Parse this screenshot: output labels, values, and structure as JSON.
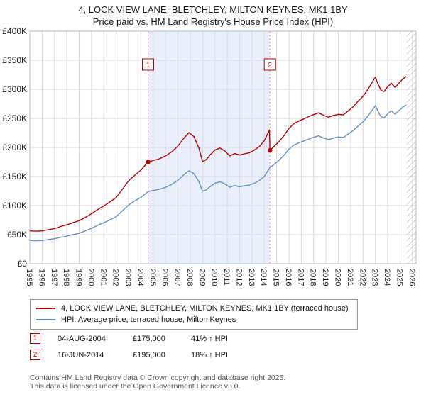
{
  "chart_data": {
    "type": "line",
    "title": "4, LOCK VIEW LANE, BLETCHLEY, MILTON KEYNES, MK1 1BY",
    "subtitle": "Price paid vs. HM Land Registry's House Price Index (HPI)",
    "x_domain": [
      1995,
      2026.3
    ],
    "y_domain": [
      0,
      400000
    ],
    "x_ticks": [
      1995,
      1996,
      1997,
      1998,
      1999,
      2000,
      2001,
      2002,
      2003,
      2004,
      2005,
      2006,
      2007,
      2008,
      2009,
      2010,
      2011,
      2012,
      2013,
      2014,
      2015,
      2016,
      2017,
      2018,
      2019,
      2020,
      2021,
      2022,
      2023,
      2024,
      2025,
      2026
    ],
    "y_ticks": [
      {
        "value": 0,
        "label": "£0"
      },
      {
        "value": 50000,
        "label": "£50K"
      },
      {
        "value": 100000,
        "label": "£100K"
      },
      {
        "value": 150000,
        "label": "£150K"
      },
      {
        "value": 200000,
        "label": "£200K"
      },
      {
        "value": 250000,
        "label": "£250K"
      },
      {
        "value": 300000,
        "label": "£300K"
      },
      {
        "value": 350000,
        "label": "£350K"
      },
      {
        "value": 400000,
        "label": "£400K"
      }
    ],
    "grid": true,
    "legend_position": "bottom",
    "shaded_region": [
      2004.58,
      2014.46
    ],
    "hatch_region": [
      2025.55,
      2026.3
    ],
    "colors": {
      "accent": "#b30000",
      "shade": "#e9effa",
      "grid": "#d9d9d9",
      "dotted": "#e4889a",
      "hatch": "#b5b5b5",
      "axis_text": "#222222",
      "plot_border": "#bbbbbb"
    },
    "sales": [
      {
        "n": "1",
        "x": 2004.58,
        "price": 175000
      },
      {
        "n": "2",
        "x": 2014.46,
        "price": 195000
      }
    ],
    "series": [
      {
        "name": "4, LOCK VIEW LANE, BLETCHLEY, MILTON KEYNES, MK1 1BY (terraced house)",
        "color": "#b30000",
        "data_name": "property-price-line",
        "points": [
          [
            1995,
            56500
          ],
          [
            1995.5,
            56000
          ],
          [
            1996,
            56500
          ],
          [
            1996.5,
            58500
          ],
          [
            1997,
            60500
          ],
          [
            1997.5,
            64000
          ],
          [
            1998,
            67000
          ],
          [
            1998.5,
            70500
          ],
          [
            1999,
            74000
          ],
          [
            1999.5,
            79500
          ],
          [
            2000,
            86000
          ],
          [
            2000.5,
            93000
          ],
          [
            2001,
            99500
          ],
          [
            2001.5,
            106500
          ],
          [
            2002,
            114000
          ],
          [
            2002.5,
            128000
          ],
          [
            2003,
            142500
          ],
          [
            2003.5,
            152000
          ],
          [
            2004,
            161000
          ],
          [
            2004.58,
            175000
          ],
          [
            2005,
            177500
          ],
          [
            2005.5,
            180500
          ],
          [
            2006,
            185500
          ],
          [
            2006.5,
            192500
          ],
          [
            2007,
            202500
          ],
          [
            2007.5,
            216500
          ],
          [
            2007.9,
            225500
          ],
          [
            2008.3,
            218500
          ],
          [
            2008.7,
            199000
          ],
          [
            2009,
            175500
          ],
          [
            2009.3,
            179000
          ],
          [
            2009.6,
            187000
          ],
          [
            2010,
            195500
          ],
          [
            2010.4,
            199000
          ],
          [
            2010.8,
            194000
          ],
          [
            2011.2,
            185500
          ],
          [
            2011.6,
            189500
          ],
          [
            2012,
            187000
          ],
          [
            2012.4,
            189000
          ],
          [
            2012.8,
            191000
          ],
          [
            2013.2,
            195500
          ],
          [
            2013.6,
            201500
          ],
          [
            2014,
            211500
          ],
          [
            2014.42,
            230000
          ],
          [
            2014.46,
            195000
          ],
          [
            2014.8,
            202000
          ],
          [
            2015.2,
            210000
          ],
          [
            2015.6,
            220500
          ],
          [
            2016,
            232500
          ],
          [
            2016.4,
            241000
          ],
          [
            2016.8,
            245500
          ],
          [
            2017.2,
            249000
          ],
          [
            2017.6,
            253000
          ],
          [
            2018,
            256500
          ],
          [
            2018.4,
            259500
          ],
          [
            2018.8,
            255500
          ],
          [
            2019.2,
            252000
          ],
          [
            2019.6,
            255000
          ],
          [
            2020,
            257000
          ],
          [
            2020.4,
            256000
          ],
          [
            2020.8,
            263000
          ],
          [
            2021.2,
            270000
          ],
          [
            2021.6,
            279500
          ],
          [
            2022,
            288000
          ],
          [
            2022.4,
            300000
          ],
          [
            2022.8,
            314000
          ],
          [
            2023,
            321000
          ],
          [
            2023.2,
            310000
          ],
          [
            2023.45,
            298500
          ],
          [
            2023.7,
            296000
          ],
          [
            2024,
            304500
          ],
          [
            2024.3,
            310500
          ],
          [
            2024.6,
            303000
          ],
          [
            2024.9,
            310500
          ],
          [
            2025.2,
            317500
          ],
          [
            2025.5,
            322000
          ]
        ]
      },
      {
        "name": "HPI: Average price, terraced house, Milton Keynes",
        "color": "#6090c0",
        "data_name": "hpi-line",
        "points": [
          [
            1995,
            40000
          ],
          [
            1995.5,
            39500
          ],
          [
            1996,
            40000
          ],
          [
            1996.5,
            41500
          ],
          [
            1997,
            43000
          ],
          [
            1997.5,
            45500
          ],
          [
            1998,
            47500
          ],
          [
            1998.5,
            50000
          ],
          [
            1999,
            52500
          ],
          [
            1999.5,
            56500
          ],
          [
            2000,
            61000
          ],
          [
            2000.5,
            66000
          ],
          [
            2001,
            70500
          ],
          [
            2001.5,
            75500
          ],
          [
            2002,
            81000
          ],
          [
            2002.5,
            91000
          ],
          [
            2003,
            101000
          ],
          [
            2003.5,
            108000
          ],
          [
            2004,
            114000
          ],
          [
            2004.58,
            124000
          ],
          [
            2005,
            126000
          ],
          [
            2005.5,
            128000
          ],
          [
            2006,
            131500
          ],
          [
            2006.5,
            136500
          ],
          [
            2007,
            143500
          ],
          [
            2007.5,
            153500
          ],
          [
            2007.9,
            160000
          ],
          [
            2008.3,
            155000
          ],
          [
            2008.7,
            141000
          ],
          [
            2009,
            124500
          ],
          [
            2009.3,
            127000
          ],
          [
            2009.6,
            132500
          ],
          [
            2010,
            138500
          ],
          [
            2010.4,
            141000
          ],
          [
            2010.8,
            137500
          ],
          [
            2011.2,
            131500
          ],
          [
            2011.6,
            134500
          ],
          [
            2012,
            132500
          ],
          [
            2012.4,
            134000
          ],
          [
            2012.8,
            135500
          ],
          [
            2013.2,
            138500
          ],
          [
            2013.6,
            143000
          ],
          [
            2014,
            150000
          ],
          [
            2014.46,
            165500
          ],
          [
            2014.8,
            171000
          ],
          [
            2015.2,
            178000
          ],
          [
            2015.6,
            187000
          ],
          [
            2016,
            197000
          ],
          [
            2016.4,
            204000
          ],
          [
            2016.8,
            208000
          ],
          [
            2017.2,
            211000
          ],
          [
            2017.6,
            214500
          ],
          [
            2018,
            217500
          ],
          [
            2018.4,
            220000
          ],
          [
            2018.8,
            216500
          ],
          [
            2019.2,
            213500
          ],
          [
            2019.6,
            216000
          ],
          [
            2020,
            218000
          ],
          [
            2020.4,
            217000
          ],
          [
            2020.8,
            223000
          ],
          [
            2021.2,
            229000
          ],
          [
            2021.6,
            237000
          ],
          [
            2022,
            244000
          ],
          [
            2022.4,
            254000
          ],
          [
            2022.8,
            266000
          ],
          [
            2023,
            272000
          ],
          [
            2023.2,
            263000
          ],
          [
            2023.45,
            253000
          ],
          [
            2023.7,
            251000
          ],
          [
            2024,
            258000
          ],
          [
            2024.3,
            263000
          ],
          [
            2024.6,
            257000
          ],
          [
            2024.9,
            263000
          ],
          [
            2025.2,
            269000
          ],
          [
            2025.5,
            273000
          ]
        ]
      }
    ]
  },
  "annotations": [
    {
      "n": "1",
      "date": "04-AUG-2004",
      "price": "£175,000",
      "hpi": "41% ↑ HPI"
    },
    {
      "n": "2",
      "date": "16-JUN-2014",
      "price": "£195,000",
      "hpi": "18% ↑ HPI"
    }
  ],
  "footer": {
    "line1": "Contains HM Land Registry data © Crown copyright and database right 2025.",
    "line2": "This data is licensed under the Open Government Licence v3.0."
  }
}
